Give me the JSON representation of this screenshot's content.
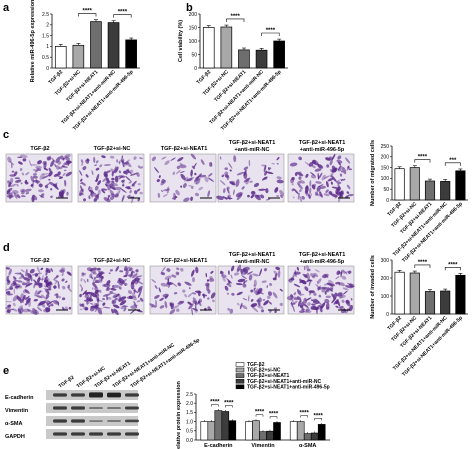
{
  "panels": {
    "a": "a",
    "b": "b",
    "c": "c",
    "d": "d",
    "e": "e"
  },
  "groups": [
    "TGF-β2",
    "TGF-β2+si-NC",
    "TGF-β2+si-NEAT1",
    "TGF-β2+si-NEAT1+anti-miR-NC",
    "TGF-β2+si-NEAT1+anti-miR-496-5p"
  ],
  "bar_fills": [
    "#ffffff",
    "#a8a8a8",
    "#6e6e6e",
    "#3c3c3c",
    "#000000"
  ],
  "image_captions": [
    "TGF-β2",
    "TGF-β2+si-NC",
    "TGF-β2+si-NEAT1",
    "TGF-β2+si-NEAT1",
    "TGF-β2+si-NEAT1"
  ],
  "image_captions_line2": [
    "",
    "",
    "",
    "+anti-miR-NC",
    "+anti-miR-496-5p"
  ],
  "colors": {
    "stain_bg": "#e9e3ef",
    "stain_cell": "#5b2a8a",
    "blot_bg": "#c9c9c9",
    "blot_band": "#222222"
  },
  "western": {
    "rows": [
      "E-cadherin",
      "Vimentin",
      "α-SMA",
      "GAPDH"
    ]
  },
  "chart_data": [
    {
      "type": "bar",
      "panel": "a",
      "ylabel": "Relative miR-496-5p expression",
      "ylim": [
        0,
        2.5
      ],
      "yticks": [
        0.0,
        0.5,
        1.0,
        1.5,
        2.0,
        2.5
      ],
      "values": [
        1.0,
        1.05,
        2.15,
        2.1,
        1.3
      ],
      "significance": [
        "****",
        "****"
      ]
    },
    {
      "type": "bar",
      "panel": "b",
      "ylabel": "Cell viability (%)",
      "ylim": [
        0,
        200
      ],
      "yticks": [
        0,
        50,
        100,
        150,
        200
      ],
      "values": [
        150,
        152,
        67,
        66,
        100
      ],
      "significance": [
        "****",
        "****"
      ]
    },
    {
      "type": "bar",
      "panel": "c",
      "ylabel": "Number of migrated cells",
      "ylim": [
        0,
        250
      ],
      "yticks": [
        0,
        50,
        100,
        150,
        200,
        250
      ],
      "values": [
        145,
        150,
        88,
        86,
        135
      ],
      "significance": [
        "****",
        "***"
      ]
    },
    {
      "type": "bar",
      "panel": "d",
      "ylabel": "Number of invaded cells",
      "ylim": [
        0,
        300
      ],
      "yticks": [
        0,
        100,
        200,
        300
      ],
      "values": [
        232,
        228,
        125,
        128,
        215
      ],
      "significance": [
        "****",
        "****"
      ]
    },
    {
      "type": "bar",
      "panel": "e",
      "ylabel": "Relative protein expression",
      "ylim": [
        0,
        2.5
      ],
      "yticks": [
        0.0,
        0.5,
        1.0,
        1.5,
        2.0,
        2.5
      ],
      "categories": [
        "E-cadherin",
        "Vimentin",
        "α-SMA"
      ],
      "series": [
        {
          "name": "TGF-β2",
          "values": [
            1.0,
            1.0,
            1.0
          ]
        },
        {
          "name": "TGF-β2+si-NC",
          "values": [
            1.0,
            1.05,
            1.0
          ]
        },
        {
          "name": "TGF-β2+si-NEAT1",
          "values": [
            1.6,
            0.45,
            0.35
          ]
        },
        {
          "name": "TGF-β2+si-NEAT1+anti-miR-NC",
          "values": [
            1.55,
            0.48,
            0.38
          ]
        },
        {
          "name": "TGF-β2+si-NEAT1+anti-miR-496-5p",
          "values": [
            1.05,
            0.95,
            0.85
          ]
        }
      ],
      "significance": [
        "****",
        "****",
        "****",
        "****",
        "****",
        "****"
      ]
    }
  ]
}
